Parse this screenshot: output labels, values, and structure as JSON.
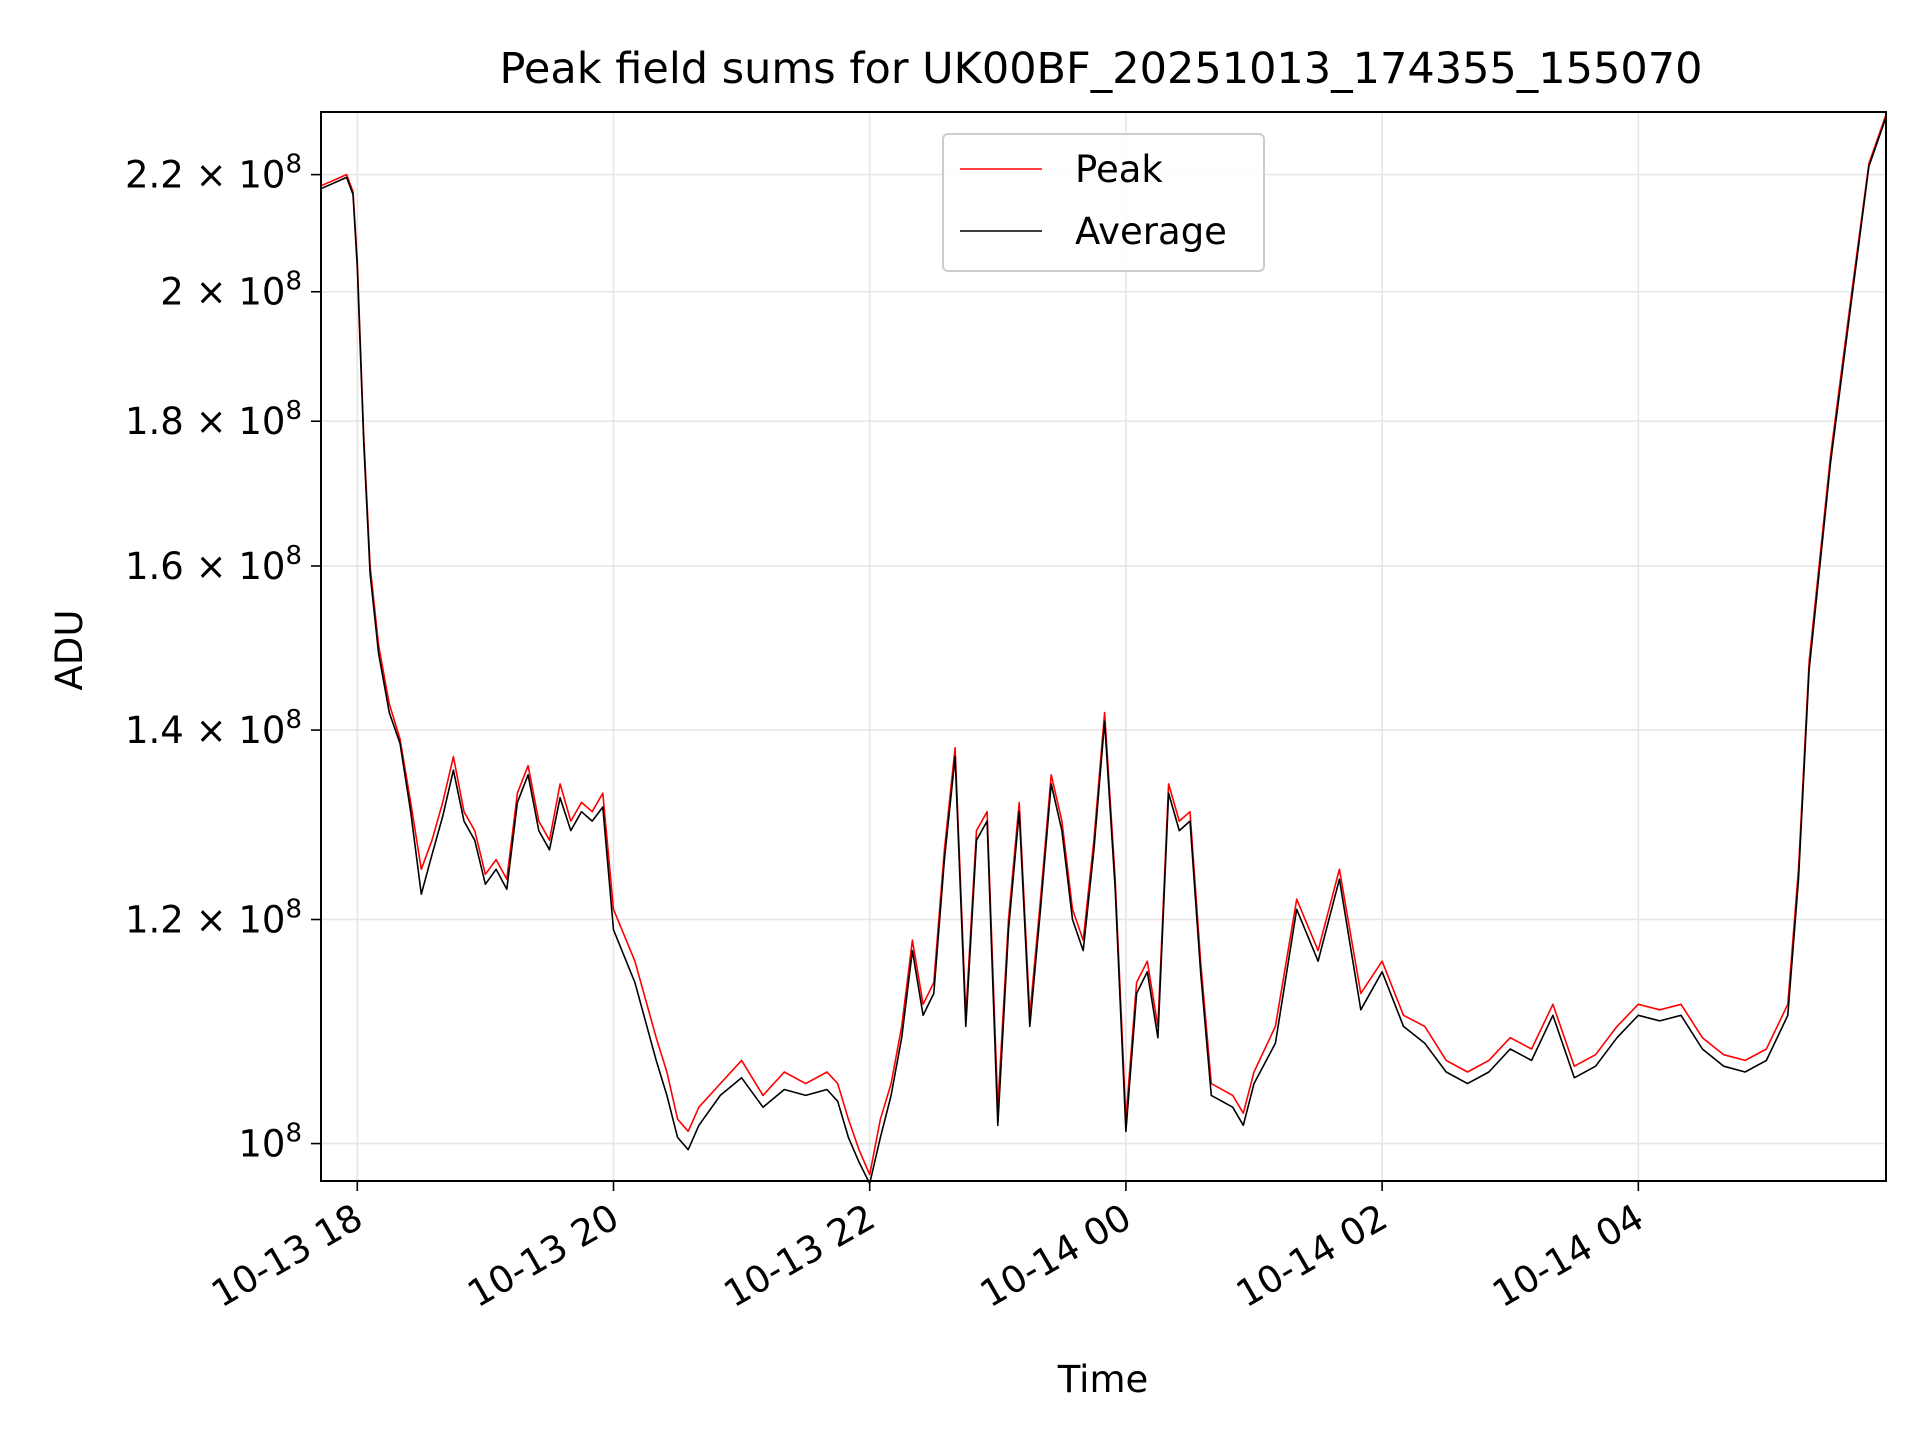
{
  "chart_data": {
    "type": "line",
    "title": "Peak field sums for UK00BF_20251013_174355_155070",
    "xlabel": "Time",
    "ylabel": "ADU",
    "yscale": "log",
    "grid": true,
    "legend_position": "upper-center",
    "xlim": [
      "2025-10-13 17:43",
      "2025-10-14 05:56"
    ],
    "ylim": [
      97000000,
      231500000
    ],
    "x_ticks": [
      {
        "value": "2025-10-13 18:00",
        "label": "10-13 18"
      },
      {
        "value": "2025-10-13 20:00",
        "label": "10-13 20"
      },
      {
        "value": "2025-10-13 22:00",
        "label": "10-13 22"
      },
      {
        "value": "2025-10-14 00:00",
        "label": "10-14 00"
      },
      {
        "value": "2025-10-14 02:00",
        "label": "10-14 02"
      },
      {
        "value": "2025-10-14 04:00",
        "label": "10-14 04"
      }
    ],
    "y_ticks": [
      {
        "value": 100000000,
        "mantissa": "",
        "exponent": "8"
      },
      {
        "value": 120000000,
        "mantissa": "1.2",
        "exponent": "8"
      },
      {
        "value": 140000000,
        "mantissa": "1.4",
        "exponent": "8"
      },
      {
        "value": 160000000,
        "mantissa": "1.6",
        "exponent": "8"
      },
      {
        "value": 180000000,
        "mantissa": "1.8",
        "exponent": "8"
      },
      {
        "value": 200000000,
        "mantissa": "2",
        "exponent": "8"
      },
      {
        "value": 220000000,
        "mantissa": "2.2",
        "exponent": "8"
      }
    ],
    "series": [
      {
        "name": "Peak",
        "color": "#ff0000"
      },
      {
        "name": "Average",
        "color": "#000000"
      }
    ],
    "x": [
      "2025-10-13 17:43",
      "2025-10-13 17:55",
      "2025-10-13 17:58",
      "2025-10-13 18:00",
      "2025-10-13 18:03",
      "2025-10-13 18:06",
      "2025-10-13 18:10",
      "2025-10-13 18:15",
      "2025-10-13 18:20",
      "2025-10-13 18:25",
      "2025-10-13 18:30",
      "2025-10-13 18:35",
      "2025-10-13 18:40",
      "2025-10-13 18:45",
      "2025-10-13 18:50",
      "2025-10-13 18:55",
      "2025-10-13 19:00",
      "2025-10-13 19:05",
      "2025-10-13 19:10",
      "2025-10-13 19:15",
      "2025-10-13 19:20",
      "2025-10-13 19:25",
      "2025-10-13 19:30",
      "2025-10-13 19:35",
      "2025-10-13 19:40",
      "2025-10-13 19:45",
      "2025-10-13 19:50",
      "2025-10-13 19:55",
      "2025-10-13 20:00",
      "2025-10-13 20:10",
      "2025-10-13 20:20",
      "2025-10-13 20:25",
      "2025-10-13 20:30",
      "2025-10-13 20:35",
      "2025-10-13 20:40",
      "2025-10-13 20:50",
      "2025-10-13 21:00",
      "2025-10-13 21:10",
      "2025-10-13 21:20",
      "2025-10-13 21:30",
      "2025-10-13 21:40",
      "2025-10-13 21:45",
      "2025-10-13 21:50",
      "2025-10-13 21:55",
      "2025-10-13 22:00",
      "2025-10-13 22:05",
      "2025-10-13 22:10",
      "2025-10-13 22:15",
      "2025-10-13 22:20",
      "2025-10-13 22:25",
      "2025-10-13 22:30",
      "2025-10-13 22:35",
      "2025-10-13 22:40",
      "2025-10-13 22:45",
      "2025-10-13 22:50",
      "2025-10-13 22:55",
      "2025-10-13 23:00",
      "2025-10-13 23:05",
      "2025-10-13 23:10",
      "2025-10-13 23:15",
      "2025-10-13 23:20",
      "2025-10-13 23:25",
      "2025-10-13 23:30",
      "2025-10-13 23:35",
      "2025-10-13 23:40",
      "2025-10-13 23:45",
      "2025-10-13 23:50",
      "2025-10-13 23:55",
      "2025-10-14 00:00",
      "2025-10-14 00:05",
      "2025-10-14 00:10",
      "2025-10-14 00:15",
      "2025-10-14 00:20",
      "2025-10-14 00:25",
      "2025-10-14 00:30",
      "2025-10-14 00:35",
      "2025-10-14 00:40",
      "2025-10-14 00:50",
      "2025-10-14 00:55",
      "2025-10-14 01:00",
      "2025-10-14 01:10",
      "2025-10-14 01:20",
      "2025-10-14 01:30",
      "2025-10-14 01:40",
      "2025-10-14 01:50",
      "2025-10-14 02:00",
      "2025-10-14 02:10",
      "2025-10-14 02:20",
      "2025-10-14 02:30",
      "2025-10-14 02:40",
      "2025-10-14 02:50",
      "2025-10-14 03:00",
      "2025-10-14 03:10",
      "2025-10-14 03:20",
      "2025-10-14 03:30",
      "2025-10-14 03:40",
      "2025-10-14 03:50",
      "2025-10-14 04:00",
      "2025-10-14 04:10",
      "2025-10-14 04:20",
      "2025-10-14 04:30",
      "2025-10-14 04:40",
      "2025-10-14 04:50",
      "2025-10-14 05:00",
      "2025-10-14 05:10",
      "2025-10-14 05:15",
      "2025-10-14 05:20",
      "2025-10-14 05:30",
      "2025-10-14 05:40",
      "2025-10-14 05:48",
      "2025-10-14 05:56"
    ],
    "peak": [
      218000000,
      220000000,
      217000000,
      205000000,
      178000000,
      160000000,
      150000000,
      143000000,
      139000000,
      132000000,
      125000000,
      128000000,
      132000000,
      137000000,
      131000000,
      129000000,
      124500000,
      126000000,
      124000000,
      133000000,
      136000000,
      130000000,
      128000000,
      134000000,
      130000000,
      132000000,
      131000000,
      133000000,
      121000000,
      116000000,
      109000000,
      106000000,
      102000000,
      101000000,
      103000000,
      105000000,
      107000000,
      104000000,
      106000000,
      105000000,
      106000000,
      105000000,
      102000000,
      99500000,
      97500000,
      102000000,
      105000000,
      110000000,
      118000000,
      112000000,
      114000000,
      127000000,
      138000000,
      111000000,
      129000000,
      131000000,
      103000000,
      120000000,
      132000000,
      111000000,
      122000000,
      135000000,
      130000000,
      121000000,
      118000000,
      128000000,
      142000000,
      124000000,
      102000000,
      114000000,
      116000000,
      110000000,
      134000000,
      130000000,
      131000000,
      116000000,
      105000000,
      104000000,
      102500000,
      106000000,
      110000000,
      122000000,
      117000000,
      125000000,
      113000000,
      116000000,
      111000000,
      110000000,
      107000000,
      106000000,
      107000000,
      109000000,
      108000000,
      112000000,
      106500000,
      107500000,
      110000000,
      112000000,
      111500000,
      112000000,
      109000000,
      107500000,
      107000000,
      108000000,
      112000000,
      125000000,
      148000000,
      175000000,
      200000000,
      222000000,
      231000000
    ],
    "average": [
      217500000,
      219500000,
      216500000,
      204000000,
      177000000,
      159000000,
      149000000,
      142000000,
      138500000,
      131000000,
      122500000,
      126500000,
      130500000,
      135500000,
      130000000,
      128000000,
      123500000,
      125000000,
      123000000,
      132000000,
      135000000,
      129000000,
      127000000,
      132500000,
      129000000,
      131000000,
      130000000,
      131500000,
      119000000,
      114000000,
      107000000,
      104000000,
      100500000,
      99500000,
      101500000,
      104000000,
      105500000,
      103000000,
      104500000,
      104000000,
      104500000,
      103500000,
      100500000,
      98500000,
      96800000,
      100500000,
      104000000,
      109000000,
      117000000,
      111000000,
      113000000,
      126000000,
      137000000,
      110000000,
      128000000,
      130000000,
      101500000,
      119000000,
      131000000,
      110000000,
      121000000,
      134000000,
      129000000,
      120000000,
      117000000,
      127000000,
      141000000,
      123000000,
      101000000,
      113000000,
      115000000,
      109000000,
      133000000,
      129000000,
      130000000,
      115000000,
      104000000,
      103000000,
      101500000,
      105000000,
      108500000,
      121000000,
      116000000,
      124000000,
      111500000,
      115000000,
      110000000,
      108500000,
      106000000,
      105000000,
      106000000,
      108000000,
      107000000,
      111000000,
      105500000,
      106500000,
      109000000,
      111000000,
      110500000,
      111000000,
      108000000,
      106500000,
      106000000,
      107000000,
      111000000,
      124000000,
      147000000,
      174000000,
      199000000,
      221500000,
      230500000
    ]
  }
}
